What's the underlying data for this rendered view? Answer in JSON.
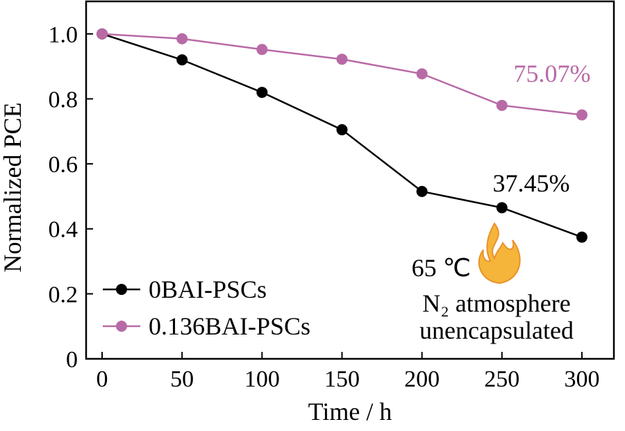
{
  "chart_data": {
    "type": "line",
    "x_label": "Time / h",
    "y_label": "Normalized PCE",
    "x": [
      0,
      50,
      100,
      150,
      200,
      250,
      300
    ],
    "series": [
      {
        "name": "0BAI-PSCs",
        "color": "#000000",
        "values": [
          1.0,
          0.92,
          0.82,
          0.705,
          0.515,
          0.465,
          0.3745
        ]
      },
      {
        "name": "0.136BAI-PSCs",
        "color": "#b86aa6",
        "values": [
          1.0,
          0.985,
          0.952,
          0.922,
          0.877,
          0.78,
          0.7507
        ]
      }
    ],
    "xlim": [
      -10,
      320
    ],
    "ylim": [
      0,
      1.1
    ],
    "xticks": [
      0,
      50,
      100,
      150,
      200,
      250,
      300
    ],
    "yticks": [
      0,
      0.2,
      0.4,
      0.6,
      0.8,
      {
        "value": 1,
        "label": "1.0"
      }
    ],
    "legend": "lower left",
    "annotations": [
      "75.07%",
      "37.45%",
      "65 ℃",
      "N₂ atmosphere",
      "unencapsulated"
    ]
  }
}
